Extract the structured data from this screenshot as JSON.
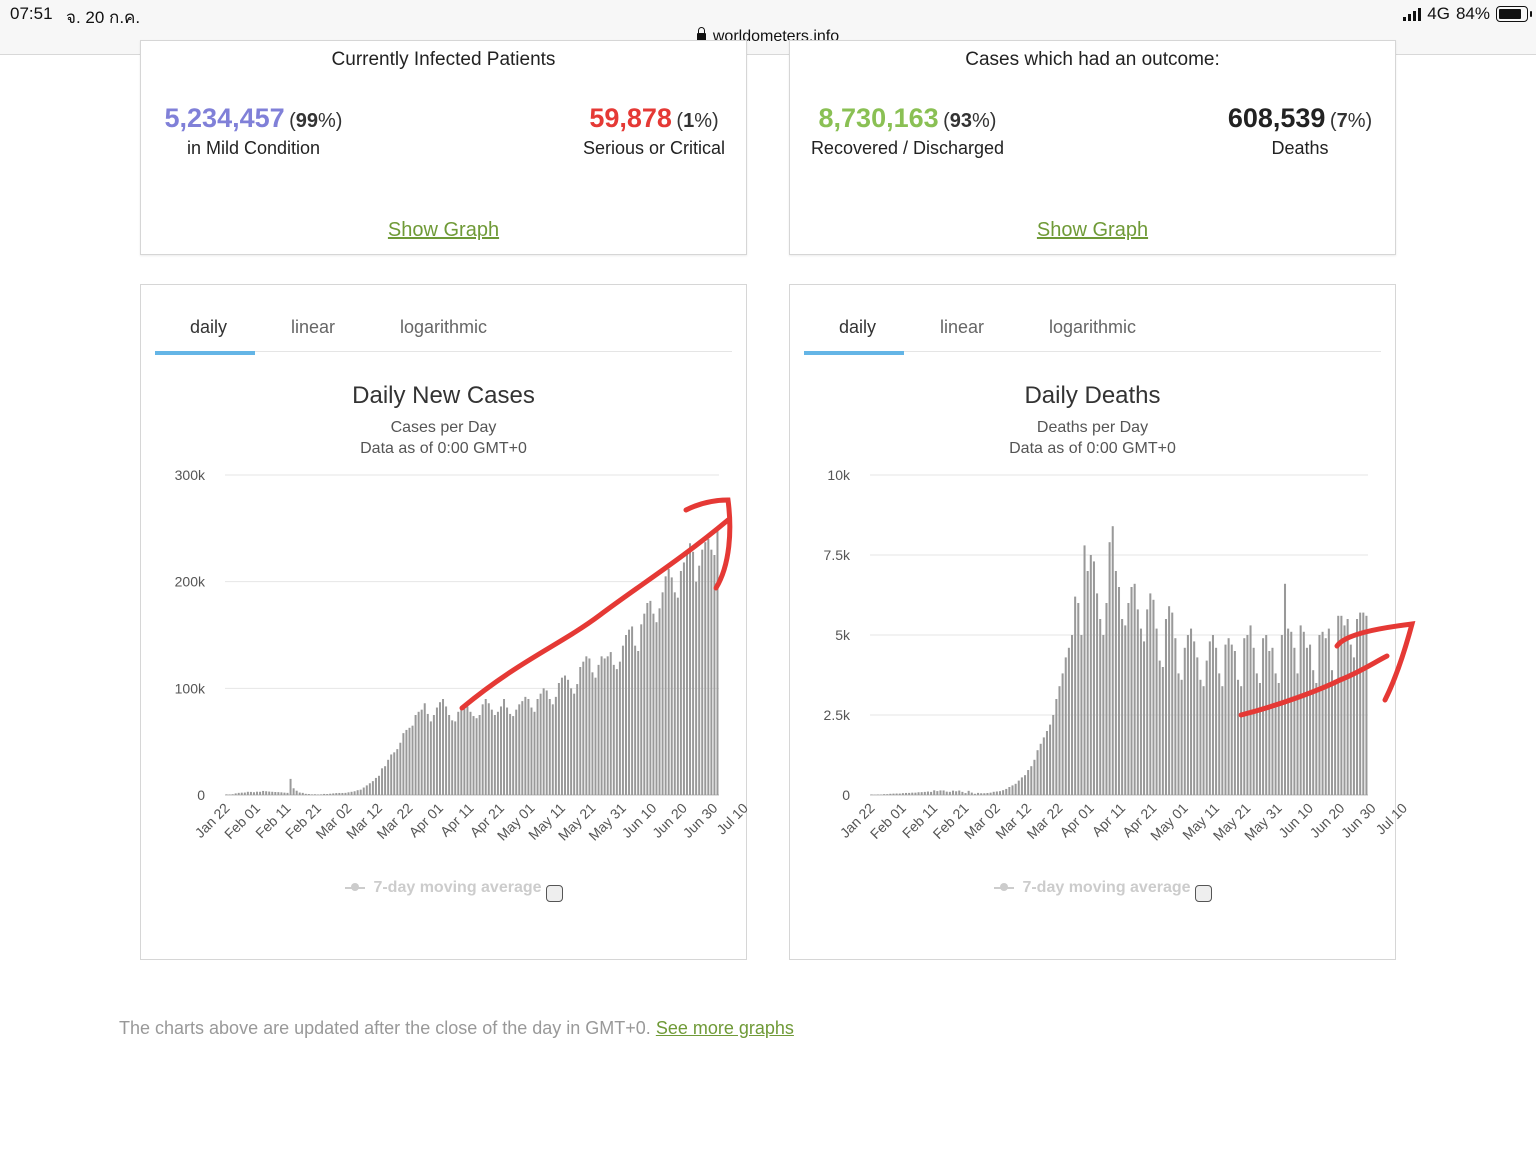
{
  "status_bar": {
    "time": "07:51",
    "date": "จ. 20 ก.ค.",
    "url": "worldometers.info",
    "network": "4G",
    "battery": "84%"
  },
  "infected": {
    "heading": "Currently Infected Patients",
    "mild": {
      "value": "5,234,457",
      "percent": "99",
      "label": "in Mild Condition",
      "color": "#8080d8"
    },
    "serious": {
      "value": "59,878",
      "percent": "1",
      "label": "Serious or Critical",
      "color": "#e53935"
    },
    "show_graph": "Show Graph"
  },
  "outcome": {
    "heading": "Cases which had an outcome:",
    "recovered": {
      "value": "8,730,163",
      "percent": "93",
      "label": "Recovered / Discharged",
      "color": "#8ac054"
    },
    "deaths": {
      "value": "608,539",
      "percent": "7",
      "label": "Deaths",
      "color": "#222222"
    },
    "show_graph": "Show Graph"
  },
  "tabs": [
    "daily",
    "linear",
    "logarithmic"
  ],
  "legend_label": "7-day moving average",
  "footnote": {
    "text": "The charts above are updated after the close of the day in GMT+0.",
    "link": "See more graphs"
  },
  "colors": {
    "bar": "#999999",
    "accent_tab": "#64b5e6",
    "link": "#6f9a37",
    "annotation": "#e53935"
  },
  "chart_data": [
    {
      "type": "bar",
      "title": "Daily New Cases",
      "subtitle": "Cases per Day",
      "note": "Data as of 0:00 GMT+0",
      "ylim": [
        0,
        300000
      ],
      "yticks": [
        0,
        100000,
        200000,
        300000
      ],
      "ytick_labels": [
        "0",
        "100k",
        "200k",
        "300k"
      ],
      "xtick_labels": [
        "Jan 22",
        "Feb 01",
        "Feb 11",
        "Feb 21",
        "Mar 02",
        "Mar 12",
        "Mar 22",
        "Apr 01",
        "Apr 11",
        "Apr 21",
        "May 01",
        "May 11",
        "May 21",
        "May 31",
        "Jun 10",
        "Jun 20",
        "Jun 30",
        "Jul 10"
      ],
      "start_date": "Jan 22",
      "values": [
        600,
        500,
        700,
        1500,
        2000,
        2200,
        2300,
        3000,
        2900,
        2600,
        3100,
        3000,
        3800,
        3500,
        3200,
        3000,
        2800,
        2700,
        2500,
        2200,
        2000,
        15100,
        6300,
        4000,
        2300,
        2000,
        1100,
        900,
        600,
        700,
        500,
        600,
        1000,
        900,
        1200,
        1500,
        1800,
        1900,
        1900,
        2000,
        2500,
        3000,
        3500,
        4500,
        5000,
        7000,
        9000,
        11000,
        13000,
        16000,
        18000,
        25000,
        27000,
        33000,
        38000,
        40000,
        43000,
        49000,
        58000,
        61000,
        63000,
        65000,
        75000,
        78000,
        80000,
        86000,
        76000,
        69000,
        75000,
        82000,
        87000,
        90000,
        83000,
        75000,
        70000,
        69000,
        78000,
        82000,
        85000,
        83000,
        78000,
        74000,
        72000,
        75000,
        85000,
        90000,
        86000,
        80000,
        75000,
        78000,
        83000,
        90000,
        82000,
        76000,
        74000,
        80000,
        85000,
        88000,
        92000,
        90000,
        82000,
        78000,
        90000,
        95000,
        100000,
        98000,
        90000,
        85000,
        92000,
        105000,
        110000,
        112000,
        108000,
        100000,
        95000,
        104000,
        120000,
        125000,
        130000,
        128000,
        115000,
        110000,
        122000,
        130000,
        128000,
        130000,
        134000,
        122000,
        118000,
        125000,
        140000,
        150000,
        155000,
        158000,
        140000,
        135000,
        160000,
        170000,
        180000,
        182000,
        170000,
        162000,
        175000,
        190000,
        205000,
        212000,
        204000,
        190000,
        185000,
        210000,
        218000,
        228000,
        236000,
        228000,
        200000,
        215000,
        230000,
        237000,
        240000,
        230000,
        225000,
        250000
      ]
    },
    {
      "type": "bar",
      "title": "Daily Deaths",
      "subtitle": "Deaths per Day",
      "note": "Data as of 0:00 GMT+0",
      "ylim": [
        0,
        10000
      ],
      "yticks": [
        0,
        2500,
        5000,
        7500,
        10000
      ],
      "ytick_labels": [
        "0",
        "2.5k",
        "5k",
        "7.5k",
        "10k"
      ],
      "xtick_labels": [
        "Jan 22",
        "Feb 01",
        "Feb 11",
        "Feb 21",
        "Mar 02",
        "Mar 12",
        "Mar 22",
        "Apr 01",
        "Apr 11",
        "Apr 21",
        "May 01",
        "May 11",
        "May 21",
        "May 31",
        "Jun 10",
        "Jun 20",
        "Jun 30",
        "Jul 10"
      ],
      "start_date": "Jan 22",
      "values": [
        17,
        8,
        16,
        14,
        26,
        26,
        38,
        43,
        46,
        45,
        57,
        64,
        65,
        73,
        73,
        86,
        89,
        97,
        108,
        97,
        146,
        121,
        143,
        142,
        105,
        98,
        136,
        116,
        139,
        98,
        60,
        130,
        75,
        38,
        66,
        54,
        55,
        63,
        73,
        100,
        110,
        120,
        150,
        190,
        250,
        300,
        350,
        450,
        550,
        620,
        780,
        900,
        1100,
        1400,
        1600,
        1800,
        2000,
        2200,
        2500,
        3000,
        3400,
        3800,
        4300,
        4600,
        5000,
        6200,
        6000,
        5000,
        7800,
        7000,
        7500,
        7300,
        6300,
        5500,
        5000,
        6000,
        7900,
        8400,
        7000,
        6500,
        5500,
        5300,
        6000,
        6500,
        6600,
        5800,
        5200,
        4800,
        5800,
        6300,
        6100,
        5200,
        4200,
        4000,
        5500,
        5900,
        5700,
        4900,
        3800,
        3600,
        4600,
        5000,
        5200,
        4800,
        4300,
        3600,
        3400,
        4200,
        4800,
        5000,
        4600,
        3800,
        3400,
        4700,
        4900,
        4700,
        4500,
        3600,
        3400,
        4900,
        5000,
        5300,
        4600,
        3800,
        3500,
        4900,
        5000,
        4500,
        4600,
        3800,
        3500,
        5000,
        6600,
        5200,
        5100,
        4600,
        3800,
        5300,
        5100,
        4600,
        4700,
        3900,
        3500,
        5000,
        5100,
        4900,
        5200,
        3900,
        3600,
        5600,
        5600,
        5300,
        5500,
        4700,
        4300,
        5500,
        5700,
        5700,
        5600
      ]
    }
  ]
}
